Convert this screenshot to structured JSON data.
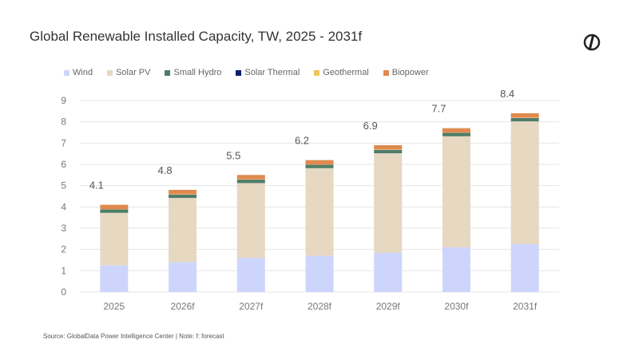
{
  "chart_data": {
    "type": "bar",
    "stacked": true,
    "title": "Global Renewable Installed Capacity, TW, 2025 - 2031f",
    "categories": [
      "2025",
      "2026f",
      "2027f",
      "2028f",
      "2029f",
      "2030f",
      "2031f"
    ],
    "ylim": [
      0,
      9
    ],
    "yticks": [
      0,
      1,
      2,
      3,
      4,
      5,
      6,
      7,
      8,
      9
    ],
    "grid": true,
    "legend": "top-left",
    "totals_labels": [
      "4.1",
      "4.8",
      "5.5",
      "6.2",
      "6.9",
      "7.7",
      "8.4"
    ],
    "series": [
      {
        "name": "Wind",
        "color": "#cdd5fd",
        "values": [
          1.25,
          1.4,
          1.6,
          1.7,
          1.85,
          2.1,
          2.25
        ]
      },
      {
        "name": "Solar PV",
        "color": "#e6d8c1",
        "values": [
          2.47,
          3.02,
          3.52,
          4.12,
          4.67,
          5.22,
          5.77
        ]
      },
      {
        "name": "Small Hydro",
        "color": "#4e7d68",
        "values": [
          0.15,
          0.15,
          0.15,
          0.15,
          0.15,
          0.15,
          0.15
        ]
      },
      {
        "name": "Solar Thermal",
        "color": "#0b1f6e",
        "values": [
          0.01,
          0.01,
          0.01,
          0.01,
          0.01,
          0.01,
          0.01
        ]
      },
      {
        "name": "Geothermal",
        "color": "#efc55e",
        "values": [
          0.02,
          0.02,
          0.02,
          0.02,
          0.02,
          0.02,
          0.02
        ]
      },
      {
        "name": "Biopower",
        "color": "#e08a4f",
        "values": [
          0.2,
          0.2,
          0.2,
          0.2,
          0.2,
          0.2,
          0.2
        ]
      }
    ]
  },
  "source": "Source: GlobalData Power Intelligence Center | Note: f: forecast"
}
